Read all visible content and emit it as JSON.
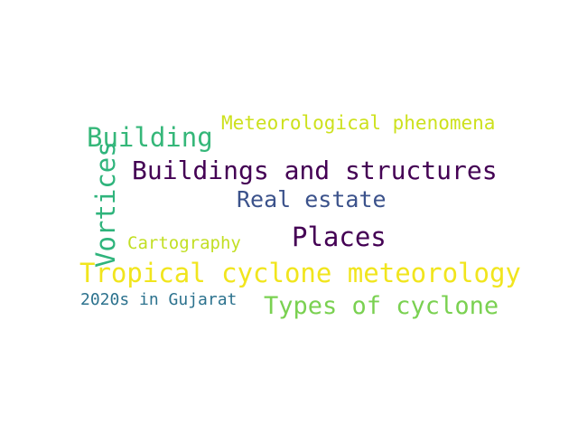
{
  "words": [
    {
      "text": "Meteorological phenomena",
      "color": "#cde11d"
    },
    {
      "text": "Building",
      "color": "#35b779"
    },
    {
      "text": "Buildings and structures",
      "color": "#440154"
    },
    {
      "text": "Vortices",
      "color": "#2fb47c"
    },
    {
      "text": "Real estate",
      "color": "#3b528b"
    },
    {
      "text": "Places",
      "color": "#440154"
    },
    {
      "text": "Cartography",
      "color": "#c2df23"
    },
    {
      "text": "Tropical cyclone meteorology",
      "color": "#f1e51d"
    },
    {
      "text": "2020s in Gujarat",
      "color": "#2c728e"
    },
    {
      "text": "Types of cyclone",
      "color": "#7ad151"
    }
  ]
}
